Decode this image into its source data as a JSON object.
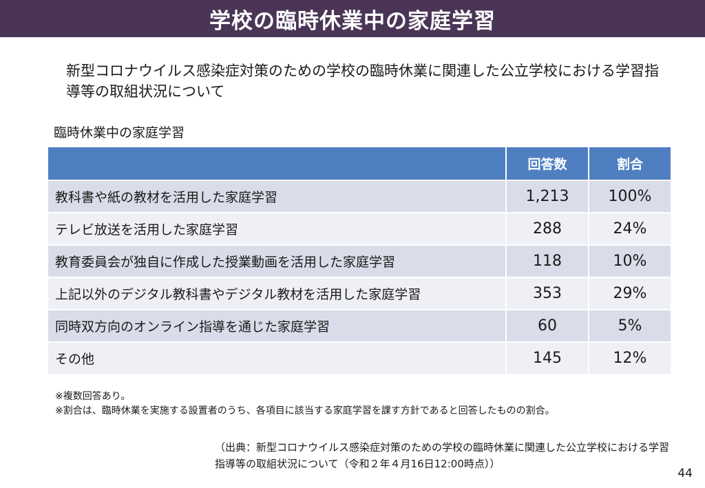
{
  "header": {
    "title": "学校の臨時休業中の家庭学習"
  },
  "subtitle": "新型コロナウイルス感染症対策のための学校の臨時休業に関連した公立学校における学習指導等の取組状況について",
  "table": {
    "caption": "臨時休業中の家庭学習",
    "columns": [
      "",
      "回答数",
      "割合"
    ],
    "rows": [
      {
        "item": "教科書や紙の教材を活用した家庭学習",
        "count": "1,213",
        "ratio": "100%"
      },
      {
        "item": "テレビ放送を活用した家庭学習",
        "count": "288",
        "ratio": "24%"
      },
      {
        "item": "教育委員会が独自に作成した授業動画を活用した家庭学習",
        "count": "118",
        "ratio": "10%"
      },
      {
        "item": "上記以外のデジタル教科書やデジタル教材を活用した家庭学習",
        "count": "353",
        "ratio": "29%"
      },
      {
        "item": "同時双方向のオンライン指導を通じた家庭学習",
        "count": "60",
        "ratio": "5%"
      },
      {
        "item": "その他",
        "count": "145",
        "ratio": "12%"
      }
    ]
  },
  "notes": [
    "※複数回答あり。",
    "※割合は、臨時休業を実施する設置者のうち、各項目に該当する家庭学習を課す方針であると回答したものの割合。"
  ],
  "source": "（出典：新型コロナウイルス感染症対策のための学校の臨時休業に関連した公立学校における学習指導等の取組状況について（令和２年４月16日12:00時点））",
  "page_number": "44",
  "colors": {
    "banner": "#4a3556",
    "table_header": "#4f7fc1",
    "row_odd": "#d9dce9",
    "row_even": "#eef0f6"
  }
}
